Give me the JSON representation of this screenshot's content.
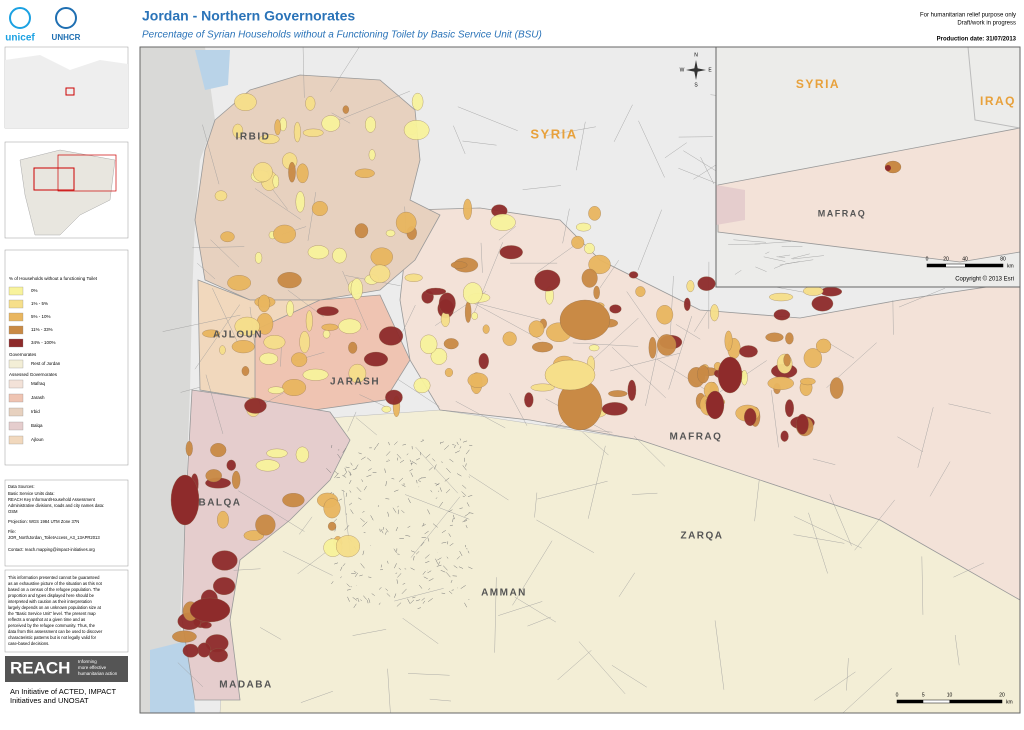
{
  "header": {
    "title": "Jordan - Northern Governorates",
    "subtitle": "Percentage of Syrian Households without a Functioning Toilet by Basic Service Unit (BSU)",
    "notice": [
      "For humanitarian relief purpose only",
      "Draft/work in progress"
    ],
    "production_date": "Production date: 31/07/2013"
  },
  "logos": {
    "unicef": "unicef",
    "unhcr": "UNHCR"
  },
  "legend": {
    "title": "% of Households without a functioning Toilet",
    "classes": [
      {
        "label": "0%",
        "color": "#f8f39c"
      },
      {
        "label": "1% - 5%",
        "color": "#f6df8a"
      },
      {
        "label": "5% - 10%",
        "color": "#e9b65f"
      },
      {
        "label": "11% - 33%",
        "color": "#c98a45"
      },
      {
        "label": "34% - 100%",
        "color": "#8e2b2b"
      }
    ],
    "governorates_title": "Governorates",
    "rest": {
      "label": "Rest of Jordan",
      "color": "#f3eed6"
    },
    "assessed_title": "Assessed Governorates",
    "assessed": [
      {
        "label": "Mafraq",
        "color": "#f3e2d8"
      },
      {
        "label": "Jarash",
        "color": "#efc4b2"
      },
      {
        "label": "Irbid",
        "color": "#e7d1bf"
      },
      {
        "label": "Balqa",
        "color": "#e5cdcd"
      },
      {
        "label": "Ajloun",
        "color": "#f1d8bd"
      }
    ]
  },
  "sources": [
    "Data Sources:",
    "Basic Service Units data:",
    "REACH Key Informant/Household Assessment",
    "Administrative divisions, roads and city names data:",
    "OSM",
    "Projection: WGS 1984 UTM Zone 37N",
    "File:",
    "JOR_NorthJordan_ToiletAccess_A3_13APR2013",
    "Contact: reach.mapping@impact-initiatives.org"
  ],
  "disclaimer": [
    "This information presented cannot be guaranteed",
    "as an exhaustive picture of the situation as this not",
    "based on a census of the refugee population. The",
    "proportion and types displayed here should be",
    "interpreted with caution as their interpretation",
    "largely depends on an unknown population size at",
    "the \"Basic Service Unit\" level. The present map",
    "reflects a snapshot at a given time and as",
    "perceived by the refugee community. Thus, the",
    "data from this assessment can be used to discover",
    "characteristic patterns but is not legally valid for",
    "case-based decisions."
  ],
  "reach": {
    "logo": "REACH",
    "tagline": [
      "Informing",
      "more effective",
      "humanitarian action"
    ],
    "initiative": [
      "An Initiative of ACTED, IMPACT",
      "Initiatives and UNOSAT"
    ]
  },
  "map": {
    "labels": [
      "IRBID",
      "AJLOUN",
      "JARASH",
      "BALQA",
      "MAFRAQ",
      "ZARQA",
      "AMMAN",
      "MADABA",
      "SYRIA"
    ],
    "compass": [
      "N",
      "E",
      "S",
      "W"
    ],
    "scale": [
      "0",
      "5",
      "10",
      "20"
    ],
    "scale_unit": "km"
  },
  "inset": {
    "labels": [
      "SYRIA",
      "IRAQ",
      "MAFRAQ"
    ],
    "scale": [
      "0",
      "20",
      "40",
      "80"
    ],
    "scale_unit": "km",
    "copyright": "Copyright © 2013 Esri"
  }
}
